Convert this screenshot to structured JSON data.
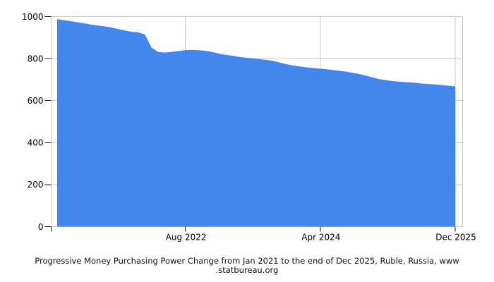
{
  "title": {
    "line1": "Progressive Money Purchasing Power Change from Jan 2021 to the end of Dec 2025, Ruble, Russia, www",
    "line2": ".statbureau.org"
  },
  "colors": {
    "area_fill": "#4387EA",
    "grid": "#c9c9c9",
    "tick": "#1a1a1a",
    "label_text": "#000000",
    "background": "#ffffff"
  },
  "chart_data": {
    "type": "area",
    "title": "Progressive Money Purchasing Power Change from Jan 2021 to the end of Dec 2025, Ruble, Russia, www.statbureau.org",
    "xlabel": "",
    "ylabel": "",
    "ylim": [
      0,
      1000
    ],
    "yticks": [
      0,
      200,
      400,
      600,
      800,
      1000
    ],
    "grid": true,
    "legend": false,
    "x": [
      "Jan 2021",
      "Feb 2021",
      "Mar 2021",
      "Apr 2021",
      "May 2021",
      "Jun 2021",
      "Jul 2021",
      "Aug 2021",
      "Sep 2021",
      "Oct 2021",
      "Nov 2021",
      "Dec 2021",
      "Jan 2022",
      "Feb 2022",
      "Mar 2022",
      "Apr 2022",
      "May 2022",
      "Jun 2022",
      "Jul 2022",
      "Aug 2022",
      "Sep 2022",
      "Oct 2022",
      "Nov 2022",
      "Dec 2022",
      "Jan 2023",
      "Feb 2023",
      "Mar 2023",
      "Apr 2023",
      "May 2023",
      "Jun 2023",
      "Jul 2023",
      "Aug 2023",
      "Sep 2023",
      "Oct 2023",
      "Nov 2023",
      "Dec 2023",
      "Jan 2024",
      "Feb 2024",
      "Mar 2024",
      "Apr 2024",
      "May 2024",
      "Jun 2024",
      "Jul 2024",
      "Aug 2024",
      "Sep 2024",
      "Oct 2024",
      "Nov 2024",
      "Dec 2024",
      "Jan 2025",
      "Feb 2025",
      "Mar 2025",
      "Apr 2025",
      "May 2025",
      "Jun 2025",
      "Jul 2025",
      "Aug 2025",
      "Sep 2025",
      "Oct 2025",
      "Nov 2025",
      "Dec 2025"
    ],
    "values": [
      988,
      983,
      978,
      973,
      968,
      962,
      957,
      954,
      948,
      941,
      934,
      928,
      925,
      915,
      852,
      831,
      829,
      832,
      836,
      840,
      841,
      840,
      837,
      831,
      824,
      818,
      813,
      808,
      804,
      801,
      797,
      794,
      789,
      781,
      773,
      767,
      762,
      758,
      755,
      752,
      749,
      745,
      741,
      737,
      731,
      725,
      717,
      708,
      701,
      696,
      692,
      689,
      687,
      685,
      681,
      679,
      677,
      674,
      671,
      668
    ],
    "xticks": [
      {
        "label": "Aug 2022",
        "index": 19
      },
      {
        "label": "Apr 2024",
        "index": 39
      },
      {
        "label": "Dec 2025",
        "index": 59
      }
    ]
  }
}
